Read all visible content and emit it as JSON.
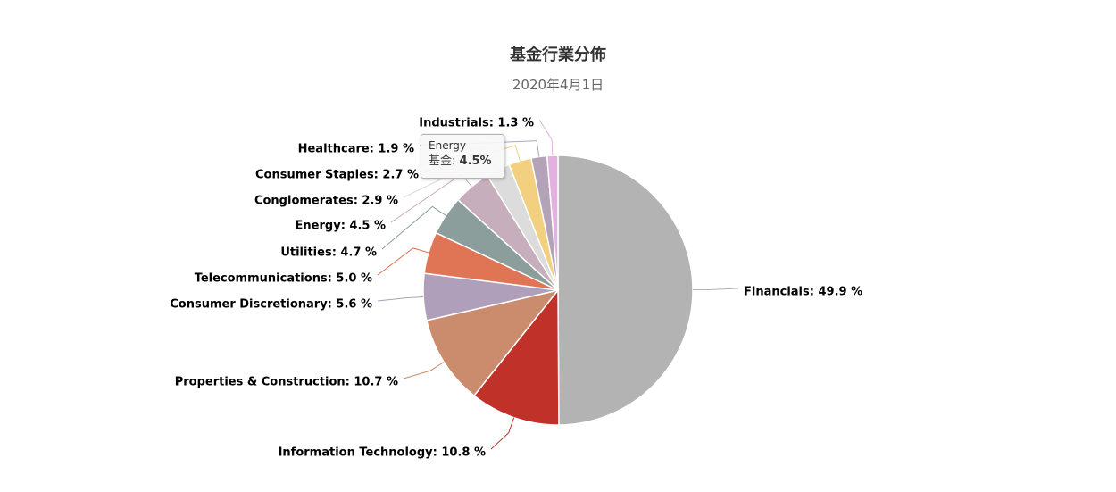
{
  "chart_data": {
    "type": "pie",
    "title": "基金行業分佈",
    "subtitle": "2020年4月1日",
    "series_name": "基金",
    "slices": [
      {
        "name": "Financials",
        "value": 49.9,
        "label": "Financials: 49.9 %",
        "color": "#b3b3b3"
      },
      {
        "name": "Information Technology",
        "value": 10.8,
        "label": "Information Technology: 10.8 %",
        "color": "#c0312a"
      },
      {
        "name": "Properties & Construction",
        "value": 10.7,
        "label": "Properties & Construction: 10.7 %",
        "color": "#cb8c6d"
      },
      {
        "name": "Consumer Discretionary",
        "value": 5.6,
        "label": "Consumer Discretionary: 5.6 %",
        "color": "#b09fbb"
      },
      {
        "name": "Telecommunications",
        "value": 5.0,
        "label": "Telecommunications: 5.0 %",
        "color": "#e07555"
      },
      {
        "name": "Utilities",
        "value": 4.7,
        "label": "Utilities: 4.7 %",
        "color": "#8b9e9c"
      },
      {
        "name": "Energy",
        "value": 4.5,
        "label": "Energy: 4.5 %",
        "color": "#c6aebd"
      },
      {
        "name": "Conglomerates",
        "value": 2.9,
        "label": "Conglomerates: 2.9 %",
        "color": "#dcdcdc"
      },
      {
        "name": "Consumer Staples",
        "value": 2.7,
        "label": "Consumer Staples: 2.7 %",
        "color": "#f2d080"
      },
      {
        "name": "Healthcare",
        "value": 1.9,
        "label": "Healthcare: 1.9 %",
        "color": "#b4a2b8"
      },
      {
        "name": "Industrials",
        "value": 1.3,
        "label": "Industrials: 1.3 %",
        "color": "#e3b0e0"
      }
    ]
  },
  "tooltip": {
    "name": "Energy",
    "series": "基金",
    "value": "4.5%"
  }
}
